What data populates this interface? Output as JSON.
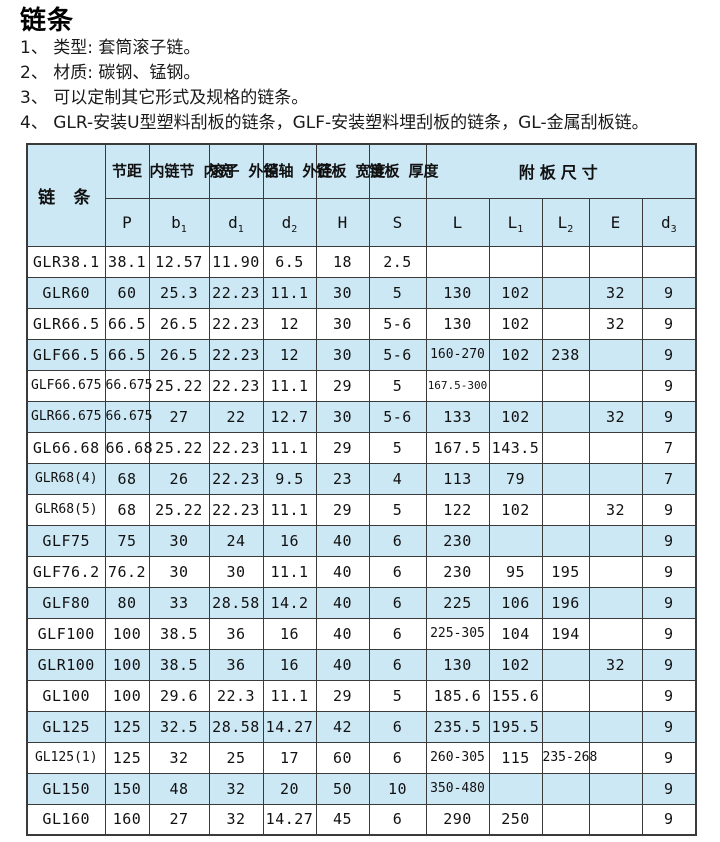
{
  "page": {
    "title": "链条",
    "notes": [
      "1、 类型: 套筒滚子链。",
      "2、 材质: 碳钢、锰钢。",
      "3、 可以定制其它形式及规格的链条。",
      "4、 GLR-安装U型塑料刮板的链条，GLF-安装塑料埋刮板的链条，GL-金属刮板链。"
    ]
  },
  "colors": {
    "row_highlight": "#cde8f5",
    "table_border": "#3a3a3a",
    "background": "#ffffff",
    "text": "#111111"
  },
  "table": {
    "chain_label": "链 条",
    "attach_label": "附板尺寸",
    "columns": [
      {
        "name": "节距",
        "sym": "P",
        "sub": ""
      },
      {
        "name": "内链节\n内宽",
        "sym": "b",
        "sub": "1"
      },
      {
        "name": "滚子\n外径",
        "sym": "d",
        "sub": "1"
      },
      {
        "name": "销轴\n外径",
        "sym": "d",
        "sub": "2"
      },
      {
        "name": "链板\n宽度",
        "sym": "H",
        "sub": ""
      },
      {
        "name": "链板\n厚度",
        "sym": "S",
        "sub": ""
      },
      {
        "name": "",
        "sym": "L",
        "sub": ""
      },
      {
        "name": "",
        "sym": "L",
        "sub": "1"
      },
      {
        "name": "",
        "sym": "L",
        "sub": "2"
      },
      {
        "name": "",
        "sym": "E",
        "sub": ""
      },
      {
        "name": "",
        "sym": "d",
        "sub": "3"
      }
    ],
    "rows": [
      {
        "model": "GLR38.1",
        "values": [
          "38.1",
          "12.57",
          "11.90",
          "6.5",
          "18",
          "2.5",
          "",
          "",
          "",
          "",
          ""
        ]
      },
      {
        "model": "GLR60",
        "values": [
          "60",
          "25.3",
          "22.23",
          "11.1",
          "30",
          "5",
          "130",
          "102",
          "",
          "32",
          "9"
        ]
      },
      {
        "model": "GLR66.5",
        "values": [
          "66.5",
          "26.5",
          "22.23",
          "12",
          "30",
          "5-6",
          "130",
          "102",
          "",
          "32",
          "9"
        ]
      },
      {
        "model": "GLF66.5",
        "values": [
          "66.5",
          "26.5",
          "22.23",
          "12",
          "30",
          "5-6",
          "160-270",
          "102",
          "238",
          "",
          "9"
        ]
      },
      {
        "model": "GLF66.675",
        "values": [
          "66.675",
          "25.22",
          "22.23",
          "11.1",
          "29",
          "5",
          "167.5-300",
          "",
          "",
          "",
          "9"
        ]
      },
      {
        "model": "GLR66.675",
        "values": [
          "66.675",
          "27",
          "22",
          "12.7",
          "30",
          "5-6",
          "133",
          "102",
          "",
          "32",
          "9"
        ]
      },
      {
        "model": "GL66.68",
        "values": [
          "66.68",
          "25.22",
          "22.23",
          "11.1",
          "29",
          "5",
          "167.5",
          "143.5",
          "",
          "",
          "7"
        ]
      },
      {
        "model": "GLR68(4)",
        "values": [
          "68",
          "26",
          "22.23",
          "9.5",
          "23",
          "4",
          "113",
          "79",
          "",
          "",
          "7"
        ]
      },
      {
        "model": "GLR68(5)",
        "values": [
          "68",
          "25.22",
          "22.23",
          "11.1",
          "29",
          "5",
          "122",
          "102",
          "",
          "32",
          "9"
        ]
      },
      {
        "model": "GLF75",
        "values": [
          "75",
          "30",
          "24",
          "16",
          "40",
          "6",
          "230",
          "",
          "",
          "",
          "9"
        ]
      },
      {
        "model": "GLF76.2",
        "values": [
          "76.2",
          "30",
          "30",
          "11.1",
          "40",
          "6",
          "230",
          "95",
          "195",
          "",
          "9"
        ]
      },
      {
        "model": "GLF80",
        "values": [
          "80",
          "33",
          "28.58",
          "14.2",
          "40",
          "6",
          "225",
          "106",
          "196",
          "",
          "9"
        ]
      },
      {
        "model": "GLF100",
        "values": [
          "100",
          "38.5",
          "36",
          "16",
          "40",
          "6",
          "225-305",
          "104",
          "194",
          "",
          "9"
        ]
      },
      {
        "model": "GLR100",
        "values": [
          "100",
          "38.5",
          "36",
          "16",
          "40",
          "6",
          "130",
          "102",
          "",
          "32",
          "9"
        ]
      },
      {
        "model": "GL100",
        "values": [
          "100",
          "29.6",
          "22.3",
          "11.1",
          "29",
          "5",
          "185.6",
          "155.6",
          "",
          "",
          "9"
        ]
      },
      {
        "model": "GL125",
        "values": [
          "125",
          "32.5",
          "28.58",
          "14.27",
          "42",
          "6",
          "235.5",
          "195.5",
          "",
          "",
          "9"
        ]
      },
      {
        "model": "GL125(1)",
        "values": [
          "125",
          "32",
          "25",
          "17",
          "60",
          "6",
          "260-305",
          "115",
          "235-268",
          "",
          "9"
        ]
      },
      {
        "model": "GL150",
        "values": [
          "150",
          "48",
          "32",
          "20",
          "50",
          "10",
          "350-480",
          "",
          "",
          "",
          "9"
        ]
      },
      {
        "model": "GL160",
        "values": [
          "160",
          "27",
          "32",
          "14.27",
          "45",
          "6",
          "290",
          "250",
          "",
          "",
          "9"
        ]
      }
    ]
  }
}
